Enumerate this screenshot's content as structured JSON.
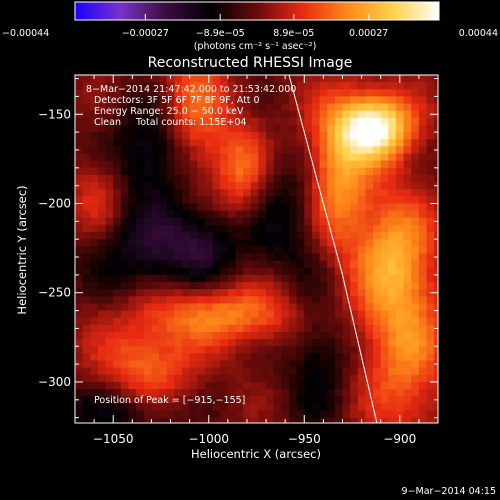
{
  "chart_data": {
    "type": "heatmap",
    "title": "Reconstructed RHESSI Image",
    "xlabel": "Heliocentric X (arcsec)",
    "ylabel": "Heliocentric Y (arcsec)",
    "xlim": [
      -1070,
      -880
    ],
    "ylim": [
      -323,
      -128
    ],
    "xticks": [
      -1050,
      -1000,
      -950,
      -900
    ],
    "xtick_labels": [
      "−1050",
      "−1000",
      "−950",
      "−900"
    ],
    "yticks": [
      -300,
      -250,
      -200,
      -150
    ],
    "ytick_labels": [
      "−300",
      "−250",
      "−200",
      "−150"
    ],
    "colorbar": {
      "range": [
        -0.00044,
        0.00044
      ],
      "ticks": [
        -0.00044,
        -0.00027,
        -8.9e-05,
        8.9e-05,
        0.00027,
        0.00044
      ],
      "tick_labels": [
        "−0.00044",
        "−0.00027",
        "−8.9e−05",
        "8.9e−05",
        "0.00027",
        "0.00044"
      ],
      "unit_label": "(photons cm⁻² s⁻¹ asec⁻²)",
      "colors": [
        "#1a00ff",
        "#7a32c8",
        "#3a0c3e",
        "#000000",
        "#6a0b0b",
        "#e82a12",
        "#ff8a1a",
        "#ffd24a",
        "#ffffff"
      ]
    },
    "annotations": {
      "time_range": "8−Mar−2014 21:47:42.000 to 21:53:42.000",
      "detectors": "Detectors: 3F 5F 6F 7F 8F 9F, Att 0",
      "energy_range": "Energy Range: 25.0 − 50.0 keV",
      "clean_counts": "Clean     Total counts: 1.15E+04",
      "peak": "Position of Peak = [−915,−155]"
    },
    "peak": [
      -915,
      -155
    ],
    "limb_points": [
      [
        -958,
        -128
      ],
      [
        -945,
        -180
      ],
      [
        -930,
        -240
      ],
      [
        -912,
        -323
      ]
    ],
    "sources": [
      {
        "x": -915,
        "y": -155,
        "amp": 1.0,
        "sx": 14,
        "sy": 13
      },
      {
        "x": -935,
        "y": -185,
        "amp": 0.55,
        "sx": 12,
        "sy": 30
      },
      {
        "x": -905,
        "y": -225,
        "amp": 0.5,
        "sx": 14,
        "sy": 25
      },
      {
        "x": -900,
        "y": -280,
        "amp": 0.45,
        "sx": 16,
        "sy": 35
      },
      {
        "x": -995,
        "y": -260,
        "amp": 0.48,
        "sx": 34,
        "sy": 12
      },
      {
        "x": -1035,
        "y": -290,
        "amp": 0.42,
        "sx": 18,
        "sy": 16
      },
      {
        "x": -1010,
        "y": -150,
        "amp": 0.45,
        "sx": 12,
        "sy": 28
      },
      {
        "x": -985,
        "y": -180,
        "amp": 0.4,
        "sx": 10,
        "sy": 20
      },
      {
        "x": -1060,
        "y": -195,
        "amp": 0.3,
        "sx": 10,
        "sy": 16
      },
      {
        "x": -1030,
        "y": -170,
        "amp": -0.42,
        "sx": 16,
        "sy": 20
      },
      {
        "x": -1040,
        "y": -225,
        "amp": -0.32,
        "sx": 20,
        "sy": 20
      },
      {
        "x": -1005,
        "y": -220,
        "amp": -0.4,
        "sx": 16,
        "sy": 16
      },
      {
        "x": -960,
        "y": -205,
        "amp": -0.3,
        "sx": 14,
        "sy": 24
      },
      {
        "x": -1050,
        "y": -315,
        "amp": -0.3,
        "sx": 22,
        "sy": 12
      },
      {
        "x": -945,
        "y": -280,
        "amp": -0.3,
        "sx": 12,
        "sy": 30
      }
    ]
  },
  "footer": {
    "timestamp": "9−Mar−2014 04:15"
  }
}
